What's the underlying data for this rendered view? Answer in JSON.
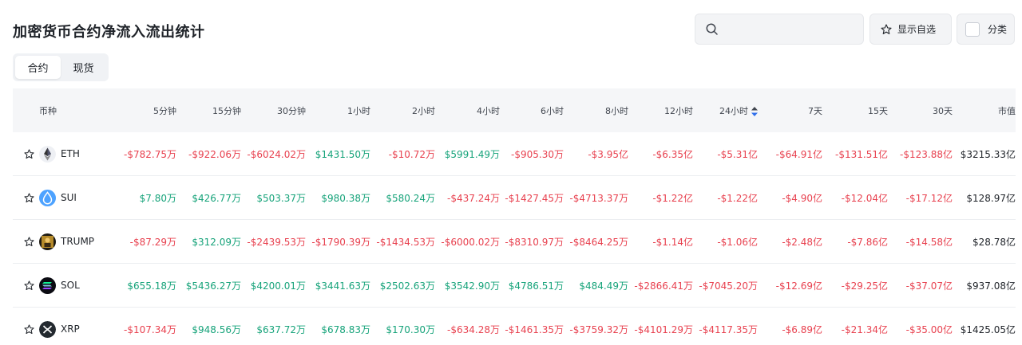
{
  "header": {
    "title": "加密货币合约净流入流出统计",
    "search_placeholder": "",
    "watchlist_label": "显示自选",
    "category_label": "分类"
  },
  "tabs": [
    {
      "label": "合约",
      "active": true
    },
    {
      "label": "现货",
      "active": false
    }
  ],
  "table": {
    "columns": [
      "币种",
      "5分钟",
      "15分钟",
      "30分钟",
      "1小时",
      "2小时",
      "4小时",
      "6小时",
      "8小时",
      "12小时",
      "24小时",
      "7天",
      "15天",
      "30天",
      "市值"
    ],
    "sorted_column": "24小时",
    "rows": [
      {
        "coin": "ETH",
        "icon": "eth-icon",
        "values": [
          "-$782.75万",
          "-$922.06万",
          "-$6024.02万",
          "$1431.50万",
          "-$10.72万",
          "$5991.49万",
          "-$905.30万",
          "-$3.95亿",
          "-$6.35亿",
          "-$5.31亿",
          "-$64.91亿",
          "-$131.51亿",
          "-$123.88亿"
        ],
        "market_cap": "$3215.33亿"
      },
      {
        "coin": "SUI",
        "icon": "sui-icon",
        "values": [
          "$7.80万",
          "$426.77万",
          "$503.37万",
          "$980.38万",
          "$580.24万",
          "-$437.24万",
          "-$1427.45万",
          "-$4713.37万",
          "-$1.22亿",
          "-$1.22亿",
          "-$4.90亿",
          "-$12.04亿",
          "-$17.12亿"
        ],
        "market_cap": "$128.97亿"
      },
      {
        "coin": "TRUMP",
        "icon": "trump-icon",
        "values": [
          "-$87.29万",
          "$312.09万",
          "-$2439.53万",
          "-$1790.39万",
          "-$1434.53万",
          "-$6000.02万",
          "-$8310.97万",
          "-$8464.25万",
          "-$1.14亿",
          "-$1.06亿",
          "-$2.48亿",
          "-$7.86亿",
          "-$14.58亿"
        ],
        "market_cap": "$28.78亿"
      },
      {
        "coin": "SOL",
        "icon": "sol-icon",
        "values": [
          "$655.18万",
          "$5436.27万",
          "$4200.01万",
          "$3441.63万",
          "$2502.63万",
          "$3542.90万",
          "$4786.51万",
          "$484.49万",
          "-$2866.41万",
          "-$7045.20万",
          "-$12.69亿",
          "-$29.25亿",
          "-$37.07亿"
        ],
        "market_cap": "$937.08亿"
      },
      {
        "coin": "XRP",
        "icon": "xrp-icon",
        "values": [
          "-$107.34万",
          "$948.56万",
          "$637.72万",
          "$678.83万",
          "$170.30万",
          "-$634.28万",
          "-$1461.35万",
          "-$3759.32万",
          "-$4101.29万",
          "-$4117.35万",
          "-$6.89亿",
          "-$21.34亿",
          "-$35.00亿"
        ],
        "market_cap": "$1425.05亿"
      }
    ]
  },
  "colors": {
    "positive": "#16a37a",
    "negative": "#e8414f"
  }
}
